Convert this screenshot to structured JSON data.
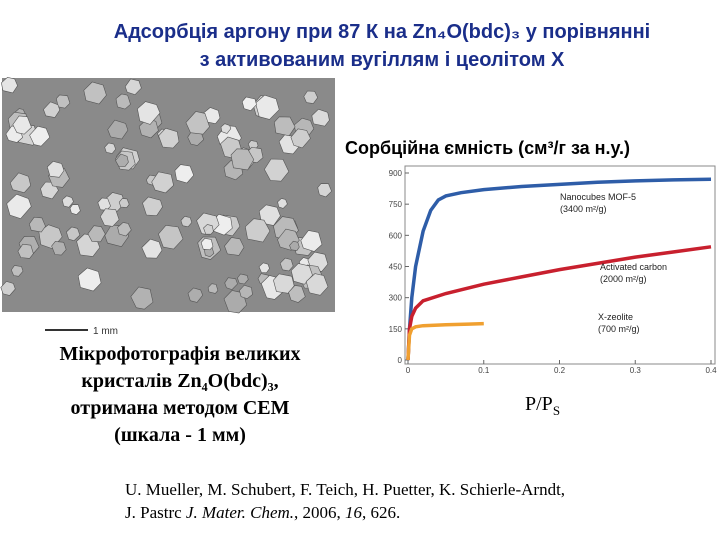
{
  "title_lines": [
    "Адсорбція аргону при 87 К на Zn₄O(bdc)₃ у порівнянні",
    "з активованим вугіллям і цеолітом Х"
  ],
  "micrograph_scale": "1 mm",
  "caption_lines": [
    "Мікрофотографія великих",
    "кристалів Zn₄O(bdc)₃,",
    "отримана методом СЕМ",
    "(шкала - 1 мм)"
  ],
  "citation": {
    "line1": "U. Mueller, M. Schubert, F. Teich, H. Puetter, K. Schierle-Arndt,",
    "line2_parts": [
      "J. Pastrc ",
      "J. Mater. Chem.",
      ", 2006, ",
      "16",
      ", 626."
    ]
  },
  "chart_data": {
    "type": "line",
    "ylabel": "Сорбційна ємність (см³/г за н.у.)",
    "xlabel": "P/P",
    "xlabel_sub": "S",
    "xlim": [
      0,
      0.4
    ],
    "xticks": [
      0,
      0.1,
      0.2,
      0.3,
      0.4
    ],
    "ylim": [
      0,
      900
    ],
    "yticks": [
      0,
      150,
      300,
      450,
      600,
      750,
      900
    ],
    "series": [
      {
        "name": "Nanocubes MOF-5",
        "area": "(3400 m²/g)",
        "color": "#2e5da8",
        "x": [
          0,
          0.002,
          0.005,
          0.01,
          0.02,
          0.03,
          0.04,
          0.05,
          0.07,
          0.1,
          0.15,
          0.2,
          0.25,
          0.3,
          0.35,
          0.4
        ],
        "values": [
          0,
          150,
          300,
          450,
          620,
          720,
          770,
          790,
          805,
          820,
          835,
          845,
          855,
          862,
          867,
          870
        ]
      },
      {
        "name": "Activated carbon",
        "area": "(2000 m²/g)",
        "color": "#c8202e",
        "x": [
          0,
          0.002,
          0.005,
          0.01,
          0.02,
          0.05,
          0.1,
          0.15,
          0.2,
          0.25,
          0.3,
          0.35,
          0.4
        ],
        "values": [
          0,
          150,
          210,
          250,
          285,
          320,
          365,
          400,
          435,
          465,
          495,
          520,
          545
        ]
      },
      {
        "name": "X-zeolite",
        "area": "(700 m²/g)",
        "color": "#f0a030",
        "x": [
          0,
          0.002,
          0.005,
          0.01,
          0.02,
          0.05,
          0.08,
          0.1
        ],
        "values": [
          0,
          120,
          150,
          160,
          165,
          170,
          173,
          175
        ]
      }
    ]
  }
}
